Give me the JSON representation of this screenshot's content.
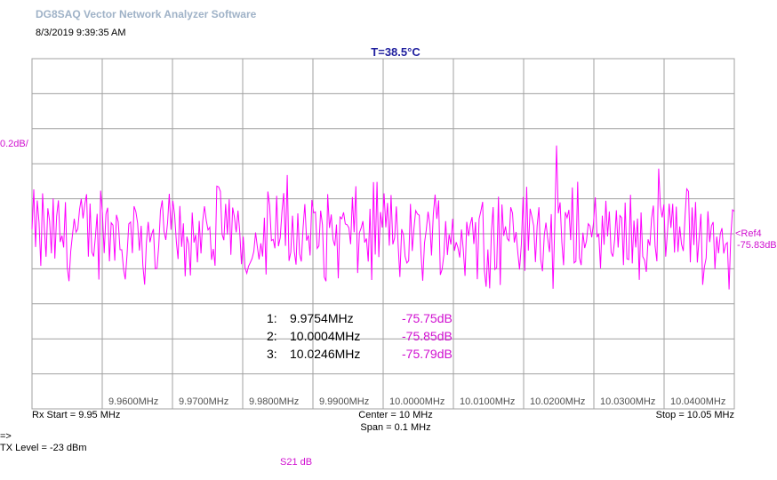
{
  "app": {
    "title": "DG8SAQ Vector Network Analyzer Software",
    "timestamp": "8/3/2019   9:39:35 AM",
    "temperature": "T=38.5°C"
  },
  "scale_label": "0.2dB/",
  "ref": {
    "label": "<Ref4",
    "value": "-75.83dB"
  },
  "markers": [
    {
      "index": "1:",
      "frequency": "9.9754MHz",
      "value": "-75.75dB"
    },
    {
      "index": "2:",
      "frequency": "10.0004MHz",
      "value": "-75.85dB"
    },
    {
      "index": "3:",
      "frequency": "10.0246MHz",
      "value": "-75.79dB"
    }
  ],
  "footer": {
    "rx_start": "Rx Start = 9.95 MHz",
    "center": "Center = 10 MHz",
    "span": "Span = 0.1 MHz",
    "stop": "Stop = 10.05 MHz",
    "prompt": "=>",
    "tx_level": "TX Level = -23 dBm",
    "trace_name": "S21  dB"
  },
  "colors": {
    "trace": "#ff00ff",
    "grid": "#a0a0a0",
    "marker_value": "#d010d0",
    "temperature": "#1f1f9e",
    "app_title": "#9fb2c7"
  },
  "chart_data": {
    "type": "line",
    "x_range_mhz": [
      9.95,
      10.05
    ],
    "x_divisions": 10,
    "y_divisions": 10,
    "y_scale_db_per_div": 0.2,
    "reference_db": -75.83,
    "reference_division": 4,
    "x_tick_labels": [
      "9.9600MHz",
      "9.9700MHz",
      "9.9800MHz",
      "9.9900MHz",
      "10.0000MHz",
      "10.0100MHz",
      "10.0200MHz",
      "10.0300MHz",
      "10.0400MHz"
    ],
    "series": [
      {
        "unit": "dB",
        "points": 400,
        "mean_db": -75.83,
        "approx_range_db": [
          -76.25,
          -75.35
        ],
        "note_markers": [
          [
            9.9754,
            -75.75
          ],
          [
            10.0004,
            -75.85
          ],
          [
            10.0246,
            -75.79
          ]
        ]
      }
    ],
    "grid": true
  }
}
